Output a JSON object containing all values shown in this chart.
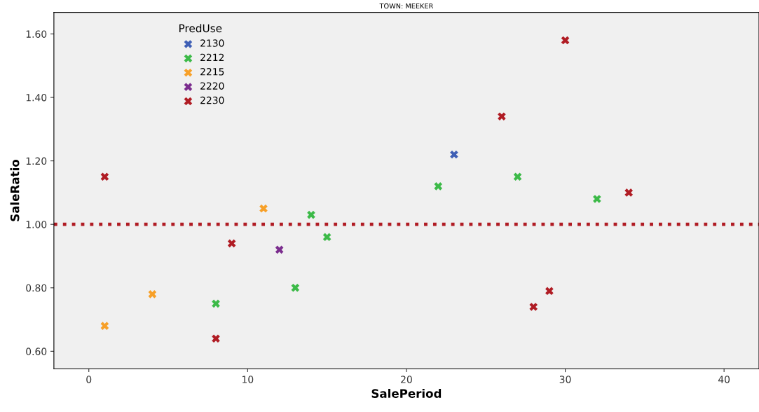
{
  "chart_data": {
    "type": "scatter",
    "title": "TOWN: MEEKER",
    "xlabel": "SalePeriod",
    "ylabel": "SaleRatio",
    "legend_title": "PredUse",
    "legend": "top left",
    "marker": "cross",
    "grid": false,
    "xlim": [
      -2.2,
      42.2
    ],
    "xticks": [
      0,
      10,
      20,
      30,
      40
    ],
    "ylim": [
      0.545,
      1.668
    ],
    "yticks": [
      {
        "value": 0.6,
        "label": "0.60"
      },
      {
        "value": 0.8,
        "label": "0.80"
      },
      {
        "value": 1.0,
        "label": "1.00"
      },
      {
        "value": 1.2,
        "label": "1.20"
      },
      {
        "value": 1.4,
        "label": "1.40"
      },
      {
        "value": 1.6,
        "label": "1.60"
      }
    ],
    "series": [
      {
        "name": "2130",
        "color": "#3f5fb5",
        "x": [
          23
        ],
        "values": [
          1.22
        ]
      },
      {
        "name": "2212",
        "color": "#3cba48",
        "x": [
          8,
          13,
          14,
          15,
          22,
          27,
          32
        ],
        "values": [
          0.75,
          0.8,
          1.03,
          0.96,
          1.12,
          1.15,
          1.08
        ]
      },
      {
        "name": "2215",
        "color": "#f7a028",
        "x": [
          1,
          4,
          11
        ],
        "values": [
          0.68,
          0.78,
          1.05
        ]
      },
      {
        "name": "2220",
        "color": "#7b2d8e",
        "x": [
          12
        ],
        "values": [
          0.92
        ]
      },
      {
        "name": "2230",
        "color": "#b01c24",
        "x": [
          1,
          8,
          9,
          26,
          28,
          29,
          30,
          34
        ],
        "values": [
          1.15,
          0.64,
          0.94,
          1.34,
          0.74,
          0.79,
          1.58,
          1.1
        ]
      }
    ],
    "ref_lines": [
      {
        "axis": "y",
        "value": 1.0,
        "color": "#b01c24",
        "line_style": "dotted"
      }
    ]
  }
}
